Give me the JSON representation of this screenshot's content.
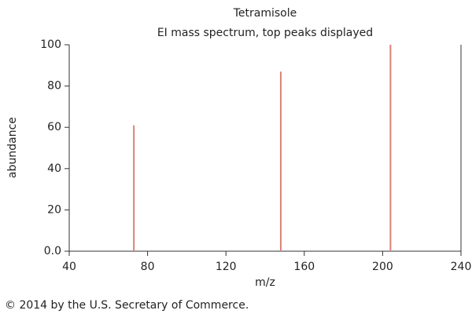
{
  "chart_data": {
    "type": "stem",
    "title": "Tetramisole",
    "subtitle": "EI mass spectrum, top peaks displayed",
    "xlabel": "m/z",
    "ylabel": "abundance",
    "x": [
      73,
      148,
      204
    ],
    "values": [
      61,
      87,
      100
    ],
    "color": "#d9827a",
    "xlim": [
      40,
      240
    ],
    "xticks": [
      40,
      80,
      120,
      160,
      200,
      240
    ],
    "ylim": [
      0,
      100
    ],
    "yticks": [
      {
        "value": 0,
        "label": "0.0"
      },
      20,
      40,
      60,
      80,
      100
    ],
    "grid": false
  },
  "footer": "© 2014 by the U.S. Secretary of Commerce."
}
